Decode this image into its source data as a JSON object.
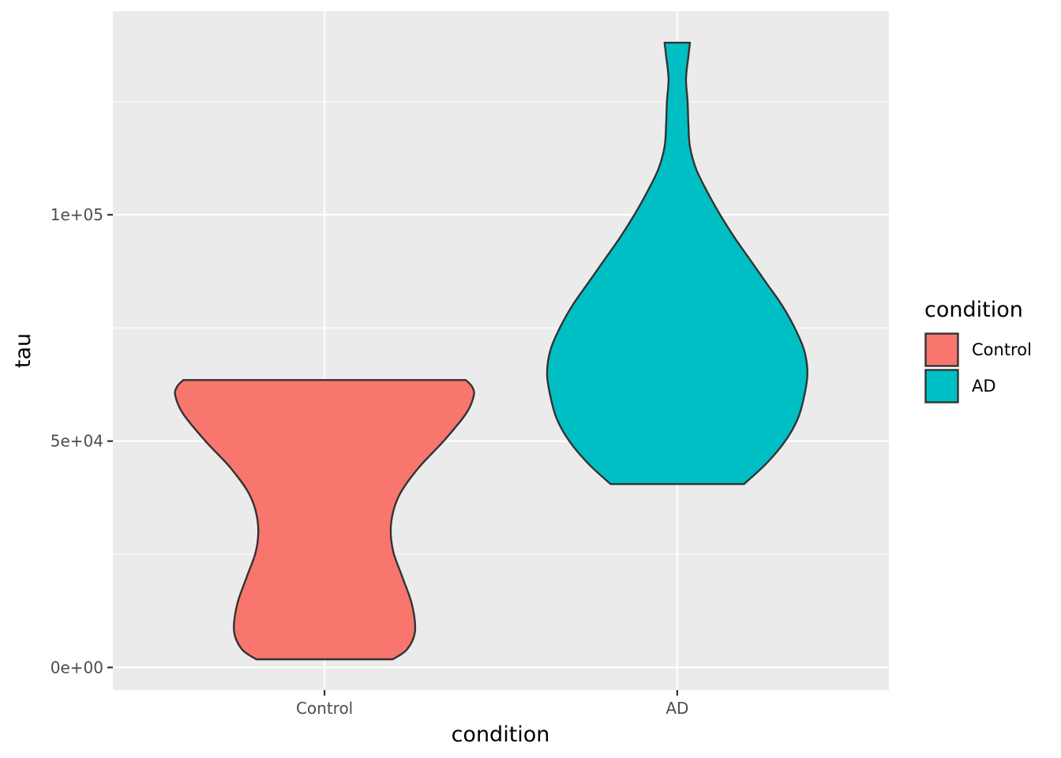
{
  "chart_data": {
    "type": "violin",
    "xlabel": "condition",
    "ylabel": "tau",
    "ylim": [
      -5000,
      145000
    ],
    "y_ticks": [
      {
        "value": 0,
        "label": "0e+00"
      },
      {
        "value": 50000,
        "label": "5e+04"
      },
      {
        "value": 100000,
        "label": "1e+05"
      }
    ],
    "y_minor_ticks": [
      25000,
      75000,
      125000
    ],
    "categories": [
      "Control",
      "AD"
    ],
    "grid": true,
    "background": "#ebebeb",
    "legend": {
      "title": "condition",
      "position": "right",
      "entries": [
        {
          "label": "Control",
          "color": "#f8766d"
        },
        {
          "label": "AD",
          "color": "#00bfc4"
        }
      ]
    },
    "series": [
      {
        "category": "Control",
        "color": "#f8766d",
        "min": 1800,
        "max": 63500,
        "density_profile": [
          [
            1800,
            0.43
          ],
          [
            4000,
            0.52
          ],
          [
            8000,
            0.57
          ],
          [
            14000,
            0.55
          ],
          [
            20000,
            0.49
          ],
          [
            26000,
            0.43
          ],
          [
            32000,
            0.42
          ],
          [
            38000,
            0.47
          ],
          [
            44000,
            0.59
          ],
          [
            50000,
            0.75
          ],
          [
            56000,
            0.89
          ],
          [
            60000,
            0.94
          ],
          [
            62000,
            0.93
          ],
          [
            63500,
            0.89
          ]
        ]
      },
      {
        "category": "AD",
        "color": "#00bfc4",
        "min": 40500,
        "max": 138000,
        "density_profile": [
          [
            40500,
            0.42
          ],
          [
            45000,
            0.56
          ],
          [
            50000,
            0.68
          ],
          [
            55000,
            0.76
          ],
          [
            60000,
            0.8
          ],
          [
            65000,
            0.82
          ],
          [
            70000,
            0.8
          ],
          [
            75000,
            0.74
          ],
          [
            80000,
            0.66
          ],
          [
            85000,
            0.56
          ],
          [
            90000,
            0.46
          ],
          [
            95000,
            0.36
          ],
          [
            100000,
            0.27
          ],
          [
            105000,
            0.19
          ],
          [
            110000,
            0.12
          ],
          [
            115000,
            0.08
          ],
          [
            120000,
            0.07
          ],
          [
            125000,
            0.065
          ],
          [
            130000,
            0.055
          ],
          [
            135000,
            0.07
          ],
          [
            138000,
            0.08
          ]
        ]
      }
    ]
  }
}
